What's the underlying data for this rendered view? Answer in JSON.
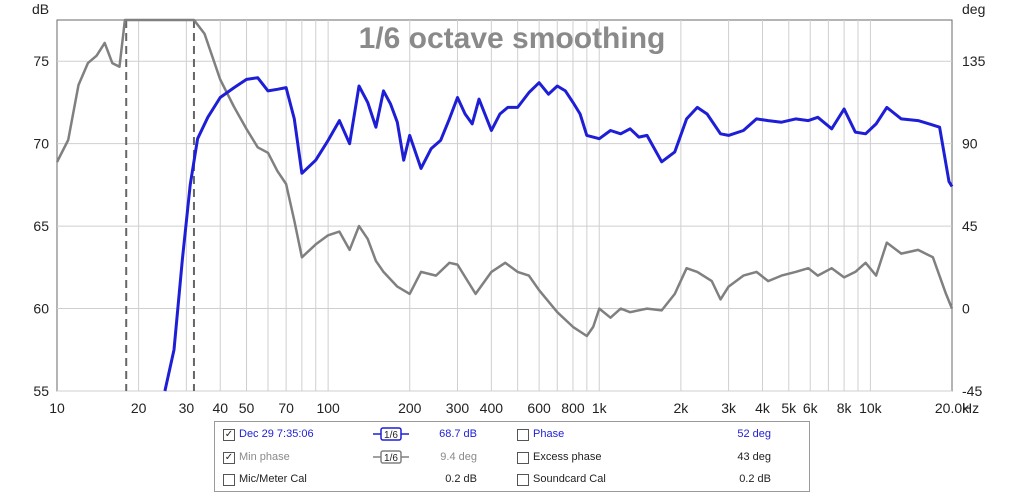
{
  "chart_data": {
    "type": "line",
    "title": "1/6 octave smoothing",
    "x_scale": "log",
    "xlim": [
      10,
      20000
    ],
    "x_ticks": [
      10,
      20,
      30,
      40,
      50,
      70,
      100,
      200,
      300,
      400,
      600,
      800,
      1000,
      2000,
      3000,
      4000,
      5000,
      6000,
      8000,
      10000,
      20000
    ],
    "x_tick_labels": [
      "10",
      "20",
      "30",
      "40",
      "50",
      "70",
      "100",
      "200",
      "300",
      "400",
      "600",
      "800",
      "1k",
      "2k",
      "3k",
      "4k",
      "5k",
      "6k",
      "8k",
      "10k",
      "20.0k"
    ],
    "x_unit": "Hz",
    "ylim_left": [
      55,
      77.5
    ],
    "y_ticks_left": [
      55,
      60,
      65,
      70,
      75
    ],
    "y_unit_left": "dB",
    "ylim_right": [
      -45,
      157.5
    ],
    "y_ticks_right": [
      -45,
      0,
      45,
      90,
      135
    ],
    "y_unit_right": "deg",
    "grid": true,
    "vlines": [
      18,
      32
    ],
    "series": [
      {
        "name": "Dec 29 7:35:06",
        "axis": "left",
        "color": "#1e1ed6",
        "points": [
          [
            25,
            55
          ],
          [
            27,
            57.5
          ],
          [
            29,
            63
          ],
          [
            31,
            67.5
          ],
          [
            33,
            70.3
          ],
          [
            36,
            71.6
          ],
          [
            40,
            72.8
          ],
          [
            45,
            73.4
          ],
          [
            50,
            73.9
          ],
          [
            55,
            74
          ],
          [
            60,
            73.2
          ],
          [
            65,
            73.3
          ],
          [
            70,
            73.4
          ],
          [
            75,
            71.5
          ],
          [
            80,
            68.2
          ],
          [
            90,
            69
          ],
          [
            100,
            70.2
          ],
          [
            110,
            71.4
          ],
          [
            120,
            70
          ],
          [
            130,
            73.5
          ],
          [
            140,
            72.5
          ],
          [
            150,
            71
          ],
          [
            160,
            73.2
          ],
          [
            170,
            72.4
          ],
          [
            180,
            71.3
          ],
          [
            190,
            69
          ],
          [
            200,
            70.5
          ],
          [
            220,
            68.5
          ],
          [
            240,
            69.7
          ],
          [
            260,
            70.2
          ],
          [
            280,
            71.5
          ],
          [
            300,
            72.8
          ],
          [
            320,
            71.8
          ],
          [
            340,
            71.2
          ],
          [
            360,
            72.7
          ],
          [
            400,
            70.8
          ],
          [
            430,
            71.8
          ],
          [
            460,
            72.2
          ],
          [
            500,
            72.2
          ],
          [
            550,
            73.1
          ],
          [
            600,
            73.7
          ],
          [
            650,
            73
          ],
          [
            700,
            73.5
          ],
          [
            750,
            73.2
          ],
          [
            800,
            72.5
          ],
          [
            850,
            71.8
          ],
          [
            900,
            70.5
          ],
          [
            1000,
            70.3
          ],
          [
            1100,
            70.8
          ],
          [
            1200,
            70.6
          ],
          [
            1300,
            70.9
          ],
          [
            1400,
            70.4
          ],
          [
            1500,
            70.5
          ],
          [
            1700,
            68.9
          ],
          [
            1900,
            69.5
          ],
          [
            2100,
            71.5
          ],
          [
            2300,
            72.2
          ],
          [
            2500,
            71.8
          ],
          [
            2800,
            70.6
          ],
          [
            3000,
            70.5
          ],
          [
            3400,
            70.8
          ],
          [
            3800,
            71.5
          ],
          [
            4200,
            71.4
          ],
          [
            4700,
            71.3
          ],
          [
            5300,
            71.5
          ],
          [
            5900,
            71.4
          ],
          [
            6400,
            71.6
          ],
          [
            7200,
            70.9
          ],
          [
            8000,
            72.1
          ],
          [
            8800,
            70.7
          ],
          [
            9600,
            70.6
          ],
          [
            10500,
            71.2
          ],
          [
            11500,
            72.2
          ],
          [
            13000,
            71.5
          ],
          [
            15000,
            71.4
          ],
          [
            16500,
            71.2
          ],
          [
            18000,
            71
          ],
          [
            19500,
            67.7
          ],
          [
            20000,
            67.4
          ]
        ]
      },
      {
        "name": "Min phase",
        "axis": "right",
        "color": "#808080",
        "points": [
          [
            10,
            80
          ],
          [
            11,
            92
          ],
          [
            12,
            122
          ],
          [
            13,
            134
          ],
          [
            14,
            138
          ],
          [
            15,
            145
          ],
          [
            16,
            134
          ],
          [
            17,
            132
          ],
          [
            17.8,
            165
          ],
          [
            32,
            168
          ],
          [
            35,
            150
          ],
          [
            40,
            125
          ],
          [
            45,
            110
          ],
          [
            50,
            98
          ],
          [
            55,
            88
          ],
          [
            60,
            85
          ],
          [
            65,
            75
          ],
          [
            70,
            68
          ],
          [
            75,
            48
          ],
          [
            80,
            28
          ],
          [
            90,
            35
          ],
          [
            100,
            40
          ],
          [
            110,
            42
          ],
          [
            120,
            32
          ],
          [
            130,
            45
          ],
          [
            140,
            38
          ],
          [
            150,
            26
          ],
          [
            160,
            20
          ],
          [
            180,
            12
          ],
          [
            200,
            8
          ],
          [
            220,
            20
          ],
          [
            250,
            18
          ],
          [
            280,
            25
          ],
          [
            300,
            24
          ],
          [
            350,
            8
          ],
          [
            400,
            20
          ],
          [
            450,
            25
          ],
          [
            500,
            20
          ],
          [
            550,
            18
          ],
          [
            600,
            10
          ],
          [
            700,
            -2
          ],
          [
            800,
            -10
          ],
          [
            900,
            -15
          ],
          [
            950,
            -10
          ],
          [
            1000,
            0
          ],
          [
            1100,
            -5
          ],
          [
            1200,
            0
          ],
          [
            1300,
            -2
          ],
          [
            1500,
            0
          ],
          [
            1700,
            -1
          ],
          [
            1900,
            8
          ],
          [
            2100,
            22
          ],
          [
            2300,
            20
          ],
          [
            2600,
            15
          ],
          [
            2800,
            5
          ],
          [
            3000,
            12
          ],
          [
            3400,
            18
          ],
          [
            3800,
            20
          ],
          [
            4200,
            15
          ],
          [
            4700,
            18
          ],
          [
            5300,
            20
          ],
          [
            5900,
            22
          ],
          [
            6400,
            18
          ],
          [
            7200,
            22
          ],
          [
            8000,
            17
          ],
          [
            8800,
            20
          ],
          [
            9600,
            25
          ],
          [
            10500,
            18
          ],
          [
            11500,
            36
          ],
          [
            13000,
            30
          ],
          [
            15000,
            32
          ],
          [
            17000,
            28
          ],
          [
            19000,
            8
          ],
          [
            20000,
            0
          ]
        ]
      }
    ]
  },
  "legend": {
    "rows": [
      {
        "name": "Dec 29 7:35:06",
        "checked": true,
        "smoothing": "1/6",
        "value": "68.7 dB",
        "right_name": "Phase",
        "right_checked": false,
        "right_value": "52 deg"
      },
      {
        "name": "Min phase",
        "checked": true,
        "smoothing": "1/6",
        "value": "9.4 deg",
        "right_name": "Excess phase",
        "right_checked": false,
        "right_value": "43 deg"
      },
      {
        "name": "Mic/Meter Cal",
        "checked": false,
        "smoothing": "",
        "value": "0.2 dB",
        "right_name": "Soundcard Cal",
        "right_checked": false,
        "right_value": "0.2 dB"
      }
    ],
    "check_mark": "✓"
  }
}
